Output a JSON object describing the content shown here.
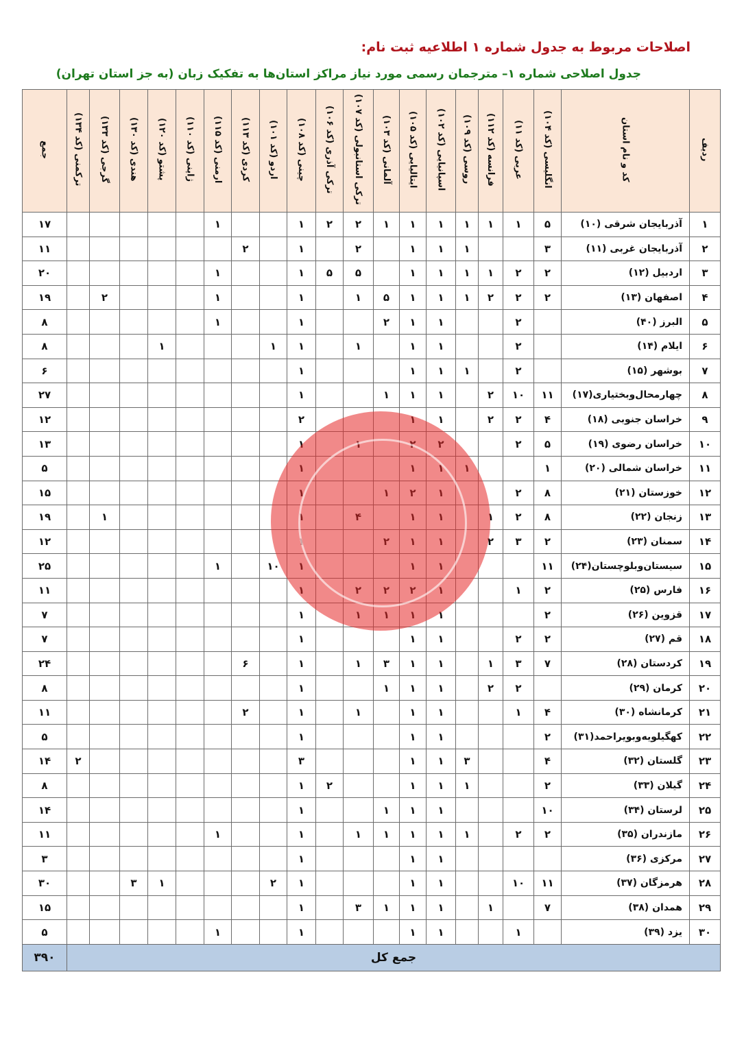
{
  "heading": "اصلاحات مربوط به جدول شماره ۱ اطلاعیه ثبت نام:",
  "subheading": "جدول اصلاحی شماره ۱– مترجمان رسمی مورد نیاز مراکز استان‌ها به تفکیک زبان (به جز استان تهران)",
  "colors": {
    "heading": "#b0141c",
    "subheading": "#1d7a1d",
    "header_bg": "#fbe6d6",
    "total_bg": "#b9cde4",
    "watermark": "#e62828"
  },
  "columns": {
    "row": "ردیف",
    "province": "کد و نام استان",
    "languages": [
      "انگلیسی (کد ۱۰۴)",
      "عربی (کد ۱۱)",
      "فرانسه (کد ۱۱۲)",
      "روسی (کد ۱۰۹)",
      "اسپانیایی (کد ۱۰۲)",
      "ایتالیایی (کد ۱۰۵)",
      "آلمانی (کد ۱۰۳)",
      "ترکی استانبولی (کد ۱۰۷)",
      "ترکی آذری (کد ۱۰۶)",
      "چینی (کد ۱۰۸)",
      "اردو (کد ۱۰۱)",
      "کردی (کد ۱۱۳)",
      "ارمنی (کد ۱۱۵)",
      "ژاپنی (کد ۱۱۰)",
      "پشتو (کد ۱۲۰)",
      "هندی (کد ۱۳۰)",
      "گرجی (کد ۱۳۳)",
      "ترکمنی (کد ۱۳۴)"
    ],
    "total": "جمع"
  },
  "rows": [
    {
      "n": "۱",
      "name": "آذربایجان شرقی (۱۰)",
      "cells": [
        "۵",
        "۱",
        "۱",
        "۱",
        "۱",
        "۱",
        "۱",
        "۲",
        "۲",
        "۱",
        "",
        "",
        "۱",
        "",
        "",
        "",
        "",
        ""
      ],
      "total": "۱۷"
    },
    {
      "n": "۲",
      "name": "آذربایجان غربی (۱۱)",
      "cells": [
        "۳",
        "",
        "",
        "۱",
        "۱",
        "۱",
        "",
        "۲",
        "",
        "۱",
        "",
        "۲",
        "",
        "",
        "",
        "",
        "",
        ""
      ],
      "total": "۱۱"
    },
    {
      "n": "۳",
      "name": "اردبیل (۱۲)",
      "cells": [
        "۲",
        "۲",
        "۱",
        "۱",
        "۱",
        "۱",
        "",
        "۵",
        "۵",
        "۱",
        "",
        "",
        "۱",
        "",
        "",
        "",
        "",
        ""
      ],
      "total": "۲۰"
    },
    {
      "n": "۴",
      "name": "اصفهان (۱۳)",
      "cells": [
        "۲",
        "۲",
        "۲",
        "۱",
        "۱",
        "۱",
        "۵",
        "۱",
        "",
        "۱",
        "",
        "",
        "۱",
        "",
        "",
        "",
        "۲",
        ""
      ],
      "total": "۱۹"
    },
    {
      "n": "۵",
      "name": "البرز (۴۰)",
      "cells": [
        "",
        "۲",
        "",
        "",
        "۱",
        "۱",
        "۲",
        "",
        "",
        "۱",
        "",
        "",
        "۱",
        "",
        "",
        "",
        "",
        ""
      ],
      "total": "۸"
    },
    {
      "n": "۶",
      "name": "ایلام (۱۴)",
      "cells": [
        "",
        "۲",
        "",
        "",
        "۱",
        "۱",
        "",
        "۱",
        "",
        "۱",
        "۱",
        "",
        "",
        "",
        "۱",
        "",
        "",
        ""
      ],
      "total": "۸"
    },
    {
      "n": "۷",
      "name": "بوشهر (۱۵)",
      "cells": [
        "",
        "۲",
        "",
        "۱",
        "۱",
        "۱",
        "",
        "",
        "",
        "۱",
        "",
        "",
        "",
        "",
        "",
        "",
        "",
        ""
      ],
      "total": "۶"
    },
    {
      "n": "۸",
      "name": "چهارمحال‌وبختیاری(۱۷)",
      "cells": [
        "۱۱",
        "۱۰",
        "۲",
        "",
        "۱",
        "۱",
        "۱",
        "",
        "",
        "۱",
        "",
        "",
        "",
        "",
        "",
        "",
        "",
        ""
      ],
      "total": "۲۷"
    },
    {
      "n": "۹",
      "name": "خراسان جنوبی (۱۸)",
      "cells": [
        "۴",
        "۲",
        "۲",
        "",
        "۱",
        "۱",
        "",
        "",
        "",
        "۲",
        "",
        "",
        "",
        "",
        "",
        "",
        "",
        ""
      ],
      "total": "۱۲"
    },
    {
      "n": "۱۰",
      "name": "خراسان رضوی (۱۹)",
      "cells": [
        "۵",
        "۲",
        "",
        "",
        "۲",
        "۲",
        "",
        "۱",
        "",
        "۱",
        "",
        "",
        "",
        "",
        "",
        "",
        "",
        ""
      ],
      "total": "۱۳"
    },
    {
      "n": "۱۱",
      "name": "خراسان شمالی (۲۰)",
      "cells": [
        "۱",
        "",
        "",
        "۱",
        "۱",
        "۱",
        "",
        "",
        "",
        "۱",
        "",
        "",
        "",
        "",
        "",
        "",
        "",
        ""
      ],
      "total": "۵"
    },
    {
      "n": "۱۲",
      "name": "خوزستان (۲۱)",
      "cells": [
        "۸",
        "۲",
        "",
        "",
        "۱",
        "۲",
        "۱",
        "",
        "",
        "۱",
        "",
        "",
        "",
        "",
        "",
        "",
        "",
        ""
      ],
      "total": "۱۵"
    },
    {
      "n": "۱۳",
      "name": "زنجان (۲۲)",
      "cells": [
        "۸",
        "۲",
        "۱",
        "",
        "۱",
        "۱",
        "",
        "۴",
        "",
        "۱",
        "",
        "",
        "",
        "",
        "",
        "",
        "۱",
        ""
      ],
      "total": "۱۹"
    },
    {
      "n": "۱۴",
      "name": "سمنان (۲۳)",
      "cells": [
        "۲",
        "۳",
        "۲",
        "",
        "۱",
        "۱",
        "۲",
        "",
        "",
        "۱",
        "",
        "",
        "",
        "",
        "",
        "",
        "",
        ""
      ],
      "total": "۱۲"
    },
    {
      "n": "۱۵",
      "name": "سیستان‌وبلوچستان(۲۴)",
      "cells": [
        "۱۱",
        "",
        "",
        "",
        "۱",
        "۱",
        "",
        "",
        "",
        "۱",
        "۱۰",
        "",
        "۱",
        "",
        "",
        "",
        "",
        ""
      ],
      "total": "۲۵"
    },
    {
      "n": "۱۶",
      "name": "فارس (۲۵)",
      "cells": [
        "۲",
        "۱",
        "",
        "",
        "۱",
        "۲",
        "۲",
        "۲",
        "",
        "۱",
        "",
        "",
        "",
        "",
        "",
        "",
        "",
        ""
      ],
      "total": "۱۱"
    },
    {
      "n": "۱۷",
      "name": "قزوین (۲۶)",
      "cells": [
        "۲",
        "",
        "",
        "",
        "۱",
        "۱",
        "۱",
        "۱",
        "",
        "۱",
        "",
        "",
        "",
        "",
        "",
        "",
        "",
        ""
      ],
      "total": "۷"
    },
    {
      "n": "۱۸",
      "name": "قم (۲۷)",
      "cells": [
        "۲",
        "۲",
        "",
        "",
        "۱",
        "۱",
        "",
        "",
        "",
        "۱",
        "",
        "",
        "",
        "",
        "",
        "",
        "",
        ""
      ],
      "total": "۷"
    },
    {
      "n": "۱۹",
      "name": "کردستان (۲۸)",
      "cells": [
        "۷",
        "۳",
        "۱",
        "",
        "۱",
        "۱",
        "۳",
        "۱",
        "",
        "۱",
        "",
        "۶",
        "",
        "",
        "",
        "",
        "",
        ""
      ],
      "total": "۲۴"
    },
    {
      "n": "۲۰",
      "name": "کرمان (۲۹)",
      "cells": [
        "",
        "۲",
        "۲",
        "",
        "۱",
        "۱",
        "۱",
        "",
        "",
        "۱",
        "",
        "",
        "",
        "",
        "",
        "",
        "",
        ""
      ],
      "total": "۸"
    },
    {
      "n": "۲۱",
      "name": "کرمانشاه (۳۰)",
      "cells": [
        "۴",
        "۱",
        "",
        "",
        "۱",
        "۱",
        "",
        "۱",
        "",
        "۱",
        "",
        "۲",
        "",
        "",
        "",
        "",
        "",
        ""
      ],
      "total": "۱۱"
    },
    {
      "n": "۲۲",
      "name": "کهگیلویه‌وبویراحمد(۳۱)",
      "cells": [
        "۲",
        "",
        "",
        "",
        "۱",
        "۱",
        "",
        "",
        "",
        "۱",
        "",
        "",
        "",
        "",
        "",
        "",
        "",
        ""
      ],
      "total": "۵"
    },
    {
      "n": "۲۳",
      "name": "گلستان (۳۲)",
      "cells": [
        "۴",
        "",
        "",
        "۳",
        "۱",
        "۱",
        "",
        "",
        "",
        "۳",
        "",
        "",
        "",
        "",
        "",
        "",
        "",
        "۲"
      ],
      "total": "۱۴"
    },
    {
      "n": "۲۴",
      "name": "گیلان (۳۳)",
      "cells": [
        "۲",
        "",
        "",
        "۱",
        "۱",
        "۱",
        "",
        "",
        "۲",
        "۱",
        "",
        "",
        "",
        "",
        "",
        "",
        "",
        ""
      ],
      "total": "۸"
    },
    {
      "n": "۲۵",
      "name": "لرستان (۳۴)",
      "cells": [
        "۱۰",
        "",
        "",
        "",
        "۱",
        "۱",
        "۱",
        "",
        "",
        "۱",
        "",
        "",
        "",
        "",
        "",
        "",
        "",
        ""
      ],
      "total": "۱۴"
    },
    {
      "n": "۲۶",
      "name": "مازندران (۳۵)",
      "cells": [
        "۲",
        "۲",
        "",
        "۱",
        "۱",
        "۱",
        "۱",
        "۱",
        "",
        "۱",
        "",
        "",
        "۱",
        "",
        "",
        "",
        "",
        ""
      ],
      "total": "۱۱"
    },
    {
      "n": "۲۷",
      "name": "مرکزی (۳۶)",
      "cells": [
        "",
        "",
        "",
        "",
        "۱",
        "۱",
        "",
        "",
        "",
        "۱",
        "",
        "",
        "",
        "",
        "",
        "",
        "",
        ""
      ],
      "total": "۳"
    },
    {
      "n": "۲۸",
      "name": "هرمزگان (۳۷)",
      "cells": [
        "۱۱",
        "۱۰",
        "",
        "",
        "۱",
        "۱",
        "",
        "",
        "",
        "۱",
        "۲",
        "",
        "",
        "",
        "۱",
        "۳",
        "",
        ""
      ],
      "total": "۳۰"
    },
    {
      "n": "۲۹",
      "name": "همدان (۳۸)",
      "cells": [
        "۷",
        "",
        "۱",
        "",
        "۱",
        "۱",
        "۱",
        "۳",
        "",
        "۱",
        "",
        "",
        "",
        "",
        "",
        "",
        "",
        ""
      ],
      "total": "۱۵"
    },
    {
      "n": "۳۰",
      "name": "یزد (۳۹)",
      "cells": [
        "",
        "۱",
        "",
        "",
        "۱",
        "۱",
        "",
        "",
        "",
        "۱",
        "",
        "",
        "۱",
        "",
        "",
        "",
        "",
        ""
      ],
      "total": "۵"
    }
  ],
  "grand_total": {
    "label": "جمع کل",
    "value": "۳۹۰"
  }
}
